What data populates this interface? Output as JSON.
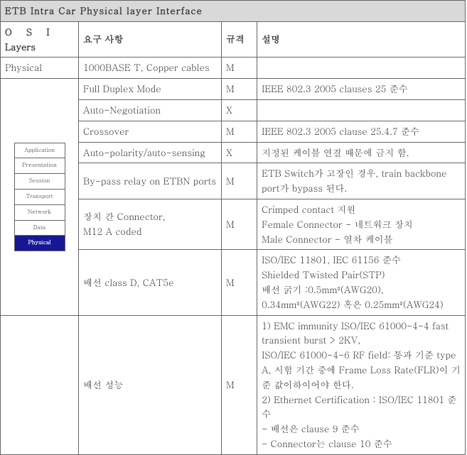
{
  "title": "ETB Intra Car Physical  layer Interface",
  "headers": {
    "osi": "O S I",
    "osi2": "Layers",
    "req": "요구 사항",
    "spec": "규격",
    "desc": "설명"
  },
  "physical_label": "Physical",
  "osi_layers": {
    "l7": "Application",
    "l6": "Presentation",
    "l5": "Session",
    "l4": "Transport",
    "l3": "Network",
    "l2": "Data",
    "l1": "Physical"
  },
  "rows": [
    {
      "req": "1000BASE T, Copper cables",
      "spec": "M",
      "desc": ""
    },
    {
      "req": "Full Duplex Mode",
      "spec": "M",
      "desc": "IEEE 802.3 2005 clauses 25 준수"
    },
    {
      "req": "Auto-Negotiation",
      "spec": "X",
      "desc": ""
    },
    {
      "req": "Crossover",
      "spec": "M",
      "desc": "IEEE 802.3 2005 clause 25.4.7 준수"
    },
    {
      "req": "Auto-polarity/auto-sensing",
      "spec": "X",
      "desc": "지정된 케이블 연결 때문에 금지 함."
    },
    {
      "req": "By-pass relay on ETBN ports",
      "spec": "M",
      "desc": "ETB Switch가 고장인 경우, train backbone port가 bypass 된다."
    },
    {
      "req": "장치 간 Connector,\nM12 A coded",
      "spec": "M",
      "desc": "Crimped contact 지원\nFemale Connector - 네트워크 장치\nMale Connector - 열차 케이블"
    },
    {
      "req": "배선 class D, CAT5e",
      "spec": "M",
      "desc": "ISO/IEC 11801, IEC 61156 준수\nShielded Twisted Pair(STP)\n배선 굵기 :0.5mm²(AWG20), 0.34mm²(AWG22) 혹은 0.25mm²(AWG24)"
    },
    {
      "req": "배선 성능",
      "spec": "M",
      "desc": "1) EMC immunity ISO/IEC 61000-4-4 fast transient burst > 2KV,\nISO/IEC 61000-4-6 RF field: 통과 기준 type A, 시험 기간 중에 Frame Loss Rate(FLR)이 기준 값이하이어야 한다.\n2) Ethernet Certification : ISO/IEC 11801 준수\n- 배선은 clause 9 준수\n- Connector는 clause 10 준수"
    }
  ]
}
